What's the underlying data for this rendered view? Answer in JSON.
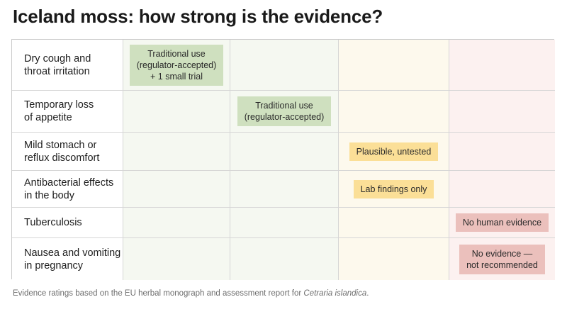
{
  "title": "Iceland moss: how strong is the evidence?",
  "colors": {
    "traditional_use": "#cfe0bf",
    "plausible": "#fbdf97",
    "no_evidence": "#ebc0bc"
  },
  "rows": [
    {
      "label": "Dry cough and\nthroat irritation",
      "rating": "Traditional use\n(regulator-accepted)\n+ 1 small trial",
      "column": 1,
      "style": "trad"
    },
    {
      "label": "Temporary loss\nof appetite",
      "rating": "Traditional use\n(regulator-accepted)",
      "column": 2,
      "style": "trad"
    },
    {
      "label": "Mild stomach or\nreflux discomfort",
      "rating": "Plausible, untested",
      "column": 3,
      "style": "plaus"
    },
    {
      "label": "Antibacterial effects\nin the body",
      "rating": "Lab findings only",
      "column": 3,
      "style": "plaus"
    },
    {
      "label": "Tuberculosis",
      "rating": "No human evidence",
      "column": 4,
      "style": "none"
    },
    {
      "label": "Nausea and vomiting\nin pregnancy",
      "rating": "No evidence —\nnot recommended",
      "column": 4,
      "style": "none"
    }
  ],
  "footnote": {
    "text": "Evidence ratings based on the EU herbal monograph and assessment report for ",
    "species": "Cetraria islandica",
    "end": "."
  }
}
